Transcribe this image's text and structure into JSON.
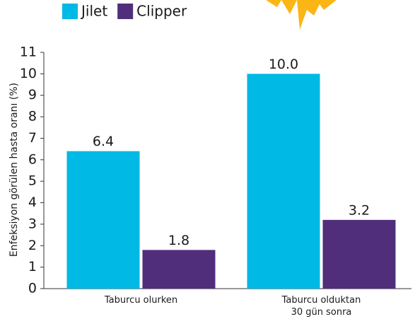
{
  "chart_data": {
    "type": "bar",
    "ylabel": "Enfeksiyon görülen hasta oranı (%)",
    "categories": [
      "Taburcu olurken",
      "Taburcu olduktan\n30 gün sonra"
    ],
    "series": [
      {
        "name": "Jilet",
        "color": "#00b9e4",
        "values": [
          6.4,
          10.0
        ],
        "value_labels": [
          "6.4",
          "10.0"
        ]
      },
      {
        "name": "Clipper",
        "color": "#512e7c",
        "values": [
          1.8,
          3.2
        ],
        "value_labels": [
          "1.8",
          "3.2"
        ]
      }
    ],
    "ylim": [
      0,
      11
    ],
    "yticks": [
      0,
      1,
      2,
      3,
      4,
      5,
      6,
      7,
      8,
      9,
      10,
      11
    ],
    "legend": "top-left"
  }
}
